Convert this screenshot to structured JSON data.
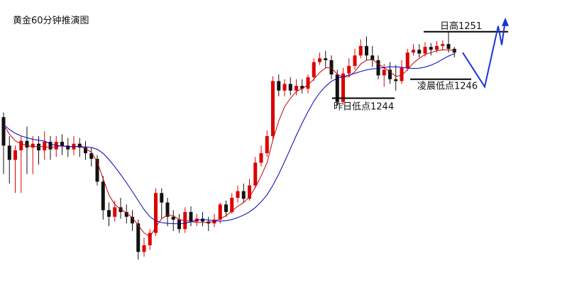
{
  "chart_data": {
    "type": "candlestick",
    "title": "黄金60分钟推演图",
    "colors": {
      "up": "#dd0000",
      "down": "#111111",
      "ma_fast": "#cc0000",
      "ma_slow": "#0000bb",
      "projection": "#1a36d8",
      "levels": "#000000"
    },
    "ylim": [
      1227,
      1253
    ],
    "candles": [
      [
        1242,
        1239,
        1242.5,
        1236
      ],
      [
        1239,
        1237.5,
        1240,
        1235
      ],
      [
        1237.5,
        1238.5,
        1239,
        1234
      ],
      [
        1238.5,
        1239.5,
        1240,
        1234
      ],
      [
        1239.5,
        1238.8,
        1241,
        1236
      ],
      [
        1238.8,
        1239.2,
        1240,
        1236
      ],
      [
        1239.2,
        1238.5,
        1240,
        1237
      ],
      [
        1238.5,
        1239.4,
        1240.5,
        1237.5
      ],
      [
        1239.4,
        1238.6,
        1240,
        1237.5
      ],
      [
        1238.6,
        1239.4,
        1240,
        1237.8
      ],
      [
        1239.4,
        1239,
        1240.2,
        1238
      ],
      [
        1239,
        1238.6,
        1239.8,
        1237.8
      ],
      [
        1238.6,
        1239.2,
        1240,
        1238
      ],
      [
        1239.2,
        1238.8,
        1239.8,
        1237.8
      ],
      [
        1238.8,
        1238.2,
        1239.5,
        1237.5
      ],
      [
        1238.2,
        1237.6,
        1238.8,
        1236.8
      ],
      [
        1237.6,
        1235.2,
        1238,
        1234.8
      ],
      [
        1235.2,
        1232.2,
        1235.8,
        1231.2
      ],
      [
        1232.2,
        1231.5,
        1233,
        1230.5
      ],
      [
        1231.5,
        1232.5,
        1233.2,
        1231
      ],
      [
        1232.5,
        1232,
        1233.5,
        1231.3
      ],
      [
        1232,
        1231.5,
        1232.8,
        1230.8
      ],
      [
        1231.5,
        1230.8,
        1232.2,
        1230
      ],
      [
        1230.8,
        1227.8,
        1231.2,
        1227
      ],
      [
        1227.8,
        1228.5,
        1229.3,
        1227.3
      ],
      [
        1228.5,
        1229.8,
        1230.2,
        1228
      ],
      [
        1229.8,
        1234,
        1234.5,
        1229.5
      ],
      [
        1234,
        1233,
        1234.5,
        1231.3
      ],
      [
        1233,
        1231.5,
        1233.5,
        1230.5
      ],
      [
        1231.5,
        1231.2,
        1232.2,
        1230
      ],
      [
        1231.2,
        1230.2,
        1231.8,
        1229.8
      ],
      [
        1230.2,
        1232,
        1232.5,
        1229.8
      ],
      [
        1232,
        1231,
        1232.6,
        1230.5
      ],
      [
        1231,
        1231.3,
        1231.8,
        1230.5
      ],
      [
        1231.3,
        1231,
        1232,
        1230.5
      ],
      [
        1231,
        1230.8,
        1231.5,
        1230
      ],
      [
        1230.8,
        1231.2,
        1231.8,
        1230.4
      ],
      [
        1231.2,
        1232.8,
        1233,
        1230.8
      ],
      [
        1232.8,
        1232,
        1233.2,
        1231.5
      ],
      [
        1232,
        1233.5,
        1234,
        1231.8
      ],
      [
        1233.5,
        1234.2,
        1234.8,
        1233
      ],
      [
        1234.2,
        1233.4,
        1235,
        1233
      ],
      [
        1233.4,
        1234.8,
        1235.5,
        1233.2
      ],
      [
        1234.8,
        1237.2,
        1237.8,
        1234.5
      ],
      [
        1237.2,
        1238.2,
        1239,
        1236.8
      ],
      [
        1238.2,
        1240,
        1240.6,
        1237.8
      ],
      [
        1240,
        1245.8,
        1246.3,
        1239.5
      ],
      [
        1245.8,
        1244.8,
        1246.5,
        1244.2
      ],
      [
        1244.8,
        1245.5,
        1246,
        1244.2
      ],
      [
        1245.5,
        1244.8,
        1246.2,
        1244.3
      ],
      [
        1244.8,
        1245.3,
        1246,
        1244.3
      ],
      [
        1245.3,
        1245,
        1246,
        1244.5
      ],
      [
        1245,
        1246.2,
        1246.5,
        1244.5
      ],
      [
        1246.2,
        1247.8,
        1248.2,
        1245.8
      ],
      [
        1247.8,
        1248.2,
        1248.8,
        1247.5
      ],
      [
        1248.2,
        1248,
        1249,
        1247.2
      ],
      [
        1248,
        1246.5,
        1248.5,
        1246
      ],
      [
        1246.5,
        1243.6,
        1247,
        1243.3
      ],
      [
        1243.6,
        1246.6,
        1247.2,
        1243.3
      ],
      [
        1246.6,
        1247.4,
        1248.2,
        1246.2
      ],
      [
        1247.4,
        1248.5,
        1249.2,
        1247
      ],
      [
        1248.5,
        1249.5,
        1250.2,
        1248.2
      ],
      [
        1249.5,
        1248.5,
        1250.5,
        1248
      ],
      [
        1248.5,
        1248,
        1249.5,
        1247.3
      ],
      [
        1248,
        1246.4,
        1248.5,
        1246
      ],
      [
        1246.4,
        1247,
        1247.6,
        1245.2
      ],
      [
        1247,
        1246,
        1247.8,
        1245.5
      ],
      [
        1246,
        1245.8,
        1247.5,
        1244.8
      ],
      [
        1245.8,
        1247.2,
        1248,
        1245.5
      ],
      [
        1247.2,
        1248.8,
        1249.2,
        1246.9
      ],
      [
        1248.8,
        1249.1,
        1249.7,
        1248.5
      ],
      [
        1249.1,
        1248.7,
        1249.7,
        1248.3
      ],
      [
        1248.7,
        1249.4,
        1249.9,
        1248.4
      ],
      [
        1249.4,
        1249.1,
        1249.8,
        1248.5
      ],
      [
        1249.1,
        1249.5,
        1250,
        1248.8
      ],
      [
        1249.5,
        1249.7,
        1250.1,
        1249
      ],
      [
        1249.7,
        1249.2,
        1251,
        1248.8
      ],
      [
        1249.2,
        1248.8,
        1249.4,
        1248.3
      ]
    ],
    "ma_fast": [
      1241.2,
      1240.2,
      1239.5,
      1239.2,
      1239,
      1238.9,
      1238.9,
      1238.9,
      1238.8,
      1238.9,
      1239,
      1238.9,
      1238.9,
      1238.9,
      1238.7,
      1238.3,
      1237.3,
      1235.5,
      1233.8,
      1232.8,
      1232.3,
      1231.9,
      1231.4,
      1230.6,
      1229.8,
      1229.4,
      1230.4,
      1231.3,
      1231.7,
      1231.6,
      1231.2,
      1231.1,
      1231,
      1230.9,
      1230.9,
      1230.9,
      1231,
      1231.3,
      1231.6,
      1232.1,
      1232.6,
      1233,
      1233.6,
      1234.6,
      1235.8,
      1237.2,
      1239.6,
      1241.6,
      1243.1,
      1244,
      1244.7,
      1245,
      1245.4,
      1246,
      1246.7,
      1247.2,
      1247.2,
      1246.5,
      1246.2,
      1246.3,
      1246.8,
      1247.6,
      1248,
      1248.1,
      1247.6,
      1247.2,
      1246.8,
      1246.3,
      1246.4,
      1247,
      1247.7,
      1248.2,
      1248.6,
      1248.8,
      1249,
      1249.1,
      1249.1,
      1249
    ]
  },
  "annotations": {
    "day_high": "日高1251",
    "yesterday_low": "昨日低点1244",
    "morning_low": "凌晨低点1246"
  }
}
